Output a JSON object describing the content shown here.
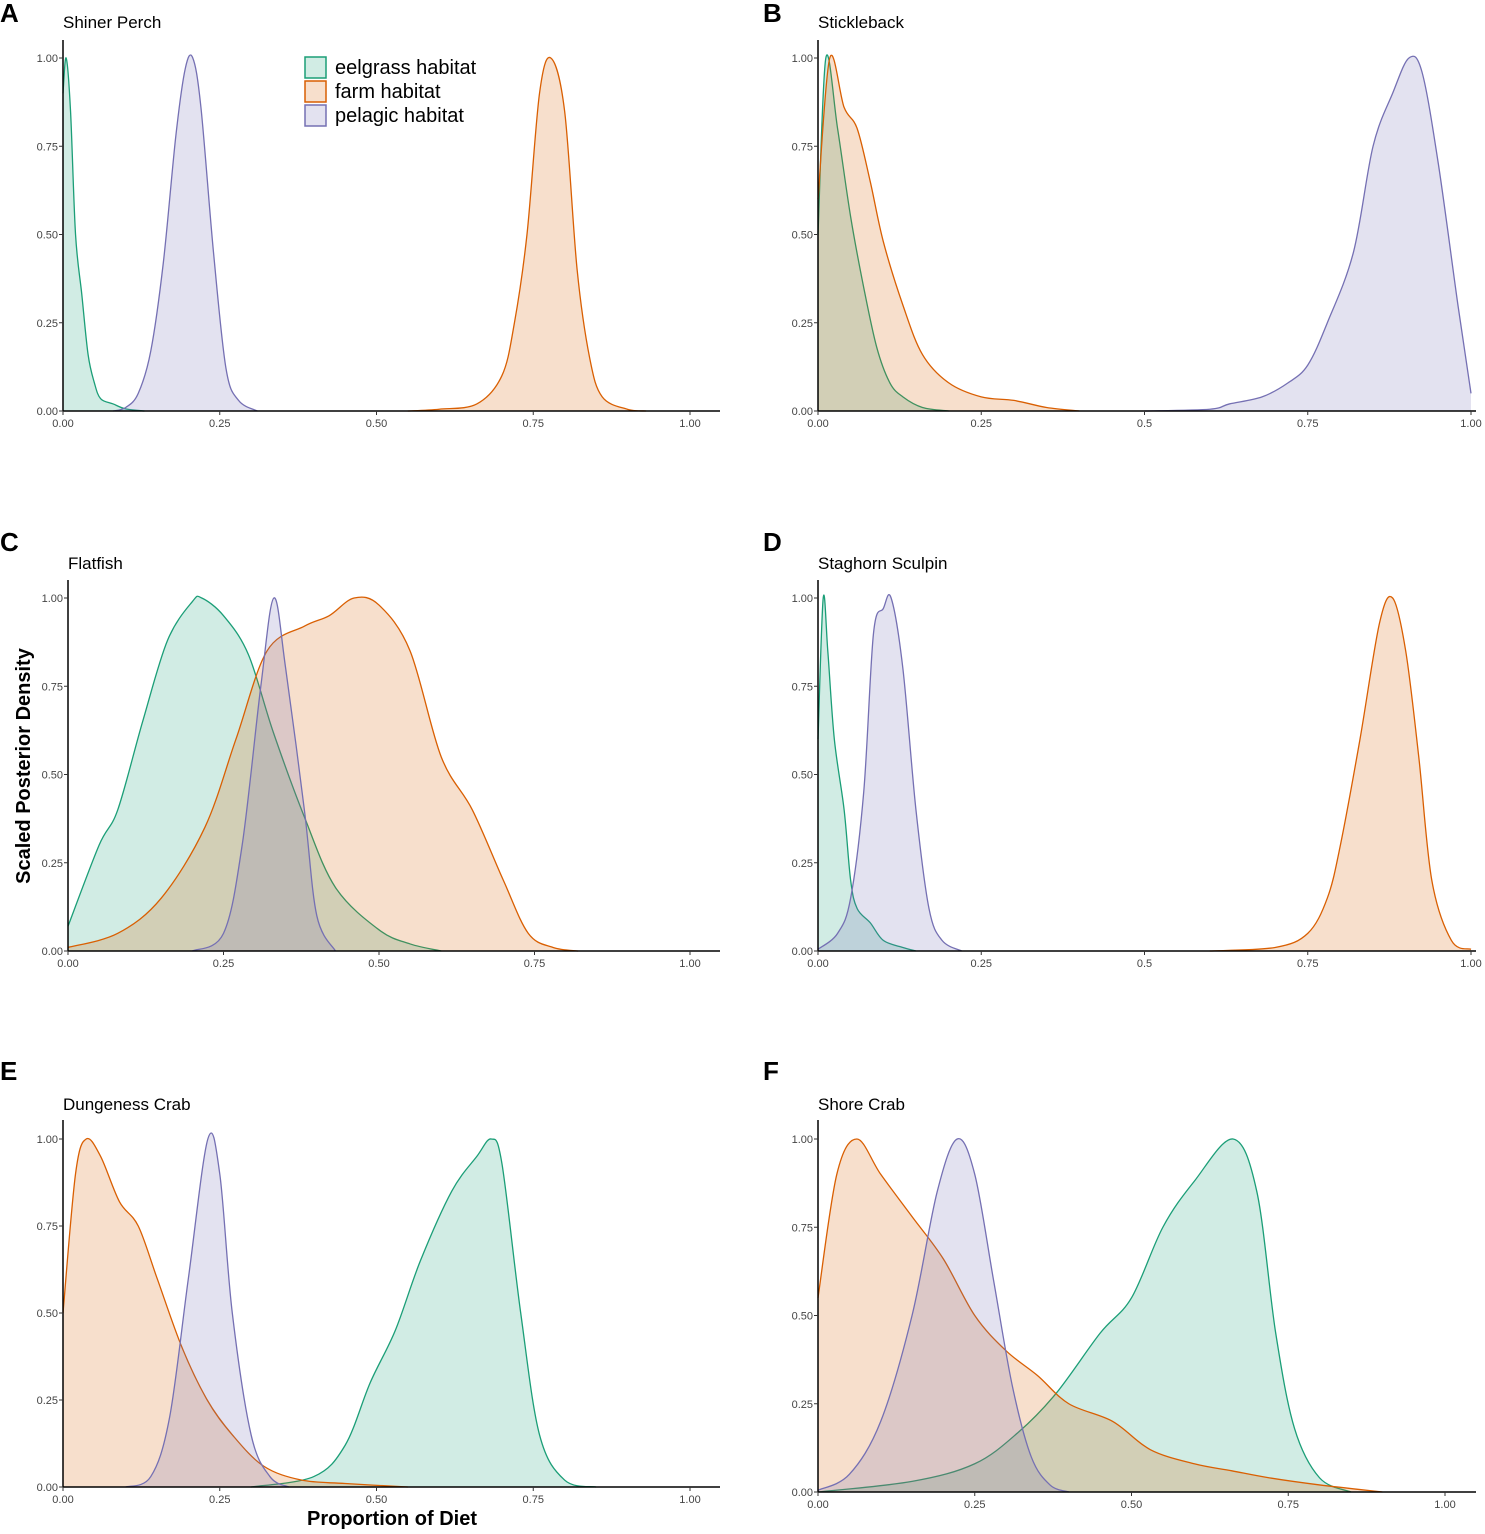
{
  "chart_data": {
    "type": "area",
    "ylabel": "Scaled Posterior Density",
    "xlabel": "Proportion of Diet",
    "legend": {
      "placement": "top-right of panel A",
      "entries": [
        {
          "key": "eelgrass",
          "label": "eelgrass habitat",
          "color": "#1b9e77"
        },
        {
          "key": "farm",
          "label": "farm habitat",
          "color": "#d95f02"
        },
        {
          "key": "pelagic",
          "label": "pelagic habitat",
          "color": "#7570b3"
        }
      ]
    },
    "ylim": [
      0,
      1
    ],
    "yticks": [
      "0.00",
      "0.25",
      "0.50",
      "0.75",
      "1.00"
    ],
    "panels": [
      {
        "letter": "A",
        "title": "Shiner Perch",
        "xticks": [
          "0.00",
          "0.25",
          "0.50",
          "0.75",
          "1.00"
        ],
        "series": {
          "eelgrass": [
            [
              0,
              0.9
            ],
            [
              0.005,
              1.0
            ],
            [
              0.012,
              0.85
            ],
            [
              0.02,
              0.5
            ],
            [
              0.03,
              0.33
            ],
            [
              0.04,
              0.16
            ],
            [
              0.05,
              0.08
            ],
            [
              0.06,
              0.035
            ],
            [
              0.08,
              0.02
            ],
            [
              0.1,
              0.006
            ],
            [
              0.13,
              0
            ]
          ],
          "pelagic": [
            [
              0.08,
              0
            ],
            [
              0.1,
              0.01
            ],
            [
              0.12,
              0.05
            ],
            [
              0.14,
              0.17
            ],
            [
              0.16,
              0.42
            ],
            [
              0.18,
              0.78
            ],
            [
              0.195,
              0.97
            ],
            [
              0.207,
              1.0
            ],
            [
              0.22,
              0.86
            ],
            [
              0.24,
              0.45
            ],
            [
              0.26,
              0.12
            ],
            [
              0.28,
              0.03
            ],
            [
              0.31,
              0
            ]
          ],
          "farm": [
            [
              0.55,
              0
            ],
            [
              0.6,
              0.005
            ],
            [
              0.66,
              0.02
            ],
            [
              0.7,
              0.1
            ],
            [
              0.72,
              0.25
            ],
            [
              0.74,
              0.5
            ],
            [
              0.76,
              0.9
            ],
            [
              0.778,
              1.0
            ],
            [
              0.8,
              0.85
            ],
            [
              0.82,
              0.4
            ],
            [
              0.84,
              0.15
            ],
            [
              0.86,
              0.04
            ],
            [
              0.9,
              0.005
            ],
            [
              0.93,
              0
            ]
          ]
        }
      },
      {
        "letter": "B",
        "title": "Stickleback",
        "xticks": [
          "0.00",
          "0.25",
          "0.5",
          "0.75",
          "1.00"
        ],
        "series": {
          "farm": [
            [
              0,
              0.6
            ],
            [
              0.018,
              1.0
            ],
            [
              0.04,
              0.86
            ],
            [
              0.06,
              0.8
            ],
            [
              0.08,
              0.65
            ],
            [
              0.1,
              0.48
            ],
            [
              0.13,
              0.3
            ],
            [
              0.16,
              0.16
            ],
            [
              0.2,
              0.08
            ],
            [
              0.25,
              0.04
            ],
            [
              0.3,
              0.03
            ],
            [
              0.35,
              0.01
            ],
            [
              0.4,
              0
            ]
          ],
          "eelgrass": [
            [
              0,
              0.5
            ],
            [
              0.012,
              1.0
            ],
            [
              0.03,
              0.8
            ],
            [
              0.05,
              0.55
            ],
            [
              0.07,
              0.35
            ],
            [
              0.09,
              0.18
            ],
            [
              0.11,
              0.08
            ],
            [
              0.13,
              0.04
            ],
            [
              0.16,
              0.01
            ],
            [
              0.2,
              0
            ]
          ],
          "pelagic": [
            [
              0.5,
              0
            ],
            [
              0.6,
              0.005
            ],
            [
              0.63,
              0.02
            ],
            [
              0.68,
              0.04
            ],
            [
              0.72,
              0.08
            ],
            [
              0.75,
              0.13
            ],
            [
              0.78,
              0.25
            ],
            [
              0.82,
              0.45
            ],
            [
              0.85,
              0.75
            ],
            [
              0.88,
              0.9
            ],
            [
              0.905,
              1.0
            ],
            [
              0.925,
              0.96
            ],
            [
              0.95,
              0.7
            ],
            [
              0.98,
              0.3
            ],
            [
              1.0,
              0.05
            ]
          ]
        }
      },
      {
        "letter": "C",
        "title": "Flatfish",
        "xticks": [
          "0.00",
          "0.25",
          "0.50",
          "0.75",
          "1.00"
        ],
        "series": {
          "eelgrass": [
            [
              0,
              0.07
            ],
            [
              0.05,
              0.3
            ],
            [
              0.08,
              0.4
            ],
            [
              0.12,
              0.65
            ],
            [
              0.16,
              0.88
            ],
            [
              0.2,
              0.99
            ],
            [
              0.215,
              1.0
            ],
            [
              0.25,
              0.95
            ],
            [
              0.29,
              0.84
            ],
            [
              0.33,
              0.62
            ],
            [
              0.38,
              0.38
            ],
            [
              0.43,
              0.18
            ],
            [
              0.5,
              0.06
            ],
            [
              0.55,
              0.02
            ],
            [
              0.6,
              0
            ]
          ],
          "farm": [
            [
              0,
              0.01
            ],
            [
              0.08,
              0.05
            ],
            [
              0.15,
              0.15
            ],
            [
              0.22,
              0.35
            ],
            [
              0.27,
              0.6
            ],
            [
              0.32,
              0.85
            ],
            [
              0.38,
              0.92
            ],
            [
              0.42,
              0.95
            ],
            [
              0.46,
              1.0
            ],
            [
              0.5,
              0.98
            ],
            [
              0.55,
              0.85
            ],
            [
              0.6,
              0.55
            ],
            [
              0.65,
              0.4
            ],
            [
              0.7,
              0.2
            ],
            [
              0.74,
              0.05
            ],
            [
              0.78,
              0.01
            ],
            [
              0.82,
              0
            ]
          ],
          "pelagic": [
            [
              0.2,
              0
            ],
            [
              0.25,
              0.05
            ],
            [
              0.28,
              0.3
            ],
            [
              0.31,
              0.75
            ],
            [
              0.331,
              1.0
            ],
            [
              0.35,
              0.8
            ],
            [
              0.38,
              0.4
            ],
            [
              0.4,
              0.1
            ],
            [
              0.43,
              0
            ]
          ]
        }
      },
      {
        "letter": "D",
        "title": "Staghorn Sculpin",
        "xticks": [
          "0.00",
          "0.25",
          "0.5",
          "0.75",
          "1.00"
        ],
        "series": {
          "eelgrass": [
            [
              0,
              0.6
            ],
            [
              0.008,
              1.0
            ],
            [
              0.015,
              0.85
            ],
            [
              0.025,
              0.6
            ],
            [
              0.04,
              0.4
            ],
            [
              0.05,
              0.2
            ],
            [
              0.06,
              0.12
            ],
            [
              0.08,
              0.08
            ],
            [
              0.1,
              0.03
            ],
            [
              0.13,
              0.01
            ],
            [
              0.15,
              0
            ]
          ],
          "pelagic": [
            [
              0,
              0.005
            ],
            [
              0.03,
              0.05
            ],
            [
              0.05,
              0.15
            ],
            [
              0.07,
              0.45
            ],
            [
              0.085,
              0.9
            ],
            [
              0.1,
              0.97
            ],
            [
              0.112,
              1.0
            ],
            [
              0.13,
              0.8
            ],
            [
              0.15,
              0.4
            ],
            [
              0.17,
              0.12
            ],
            [
              0.19,
              0.03
            ],
            [
              0.22,
              0
            ]
          ],
          "farm": [
            [
              0.6,
              0
            ],
            [
              0.7,
              0.01
            ],
            [
              0.75,
              0.05
            ],
            [
              0.78,
              0.15
            ],
            [
              0.8,
              0.3
            ],
            [
              0.83,
              0.6
            ],
            [
              0.86,
              0.93
            ],
            [
              0.88,
              1.0
            ],
            [
              0.9,
              0.85
            ],
            [
              0.92,
              0.55
            ],
            [
              0.94,
              0.2
            ],
            [
              0.97,
              0.03
            ],
            [
              1.0,
              0.005
            ]
          ]
        }
      },
      {
        "letter": "E",
        "title": "Dungeness Crab",
        "xticks": [
          "0.00",
          "0.25",
          "0.50",
          "0.75",
          "1.00"
        ],
        "series": {
          "farm": [
            [
              0,
              0.5
            ],
            [
              0.02,
              0.9
            ],
            [
              0.037,
              1.0
            ],
            [
              0.06,
              0.95
            ],
            [
              0.09,
              0.82
            ],
            [
              0.12,
              0.75
            ],
            [
              0.15,
              0.6
            ],
            [
              0.19,
              0.4
            ],
            [
              0.23,
              0.25
            ],
            [
              0.27,
              0.15
            ],
            [
              0.32,
              0.06
            ],
            [
              0.38,
              0.02
            ],
            [
              0.45,
              0.01
            ],
            [
              0.55,
              0
            ]
          ],
          "pelagic": [
            [
              0.1,
              0
            ],
            [
              0.14,
              0.03
            ],
            [
              0.17,
              0.2
            ],
            [
              0.2,
              0.6
            ],
            [
              0.231,
              1.0
            ],
            [
              0.25,
              0.9
            ],
            [
              0.27,
              0.5
            ],
            [
              0.3,
              0.15
            ],
            [
              0.33,
              0.03
            ],
            [
              0.36,
              0
            ]
          ],
          "eelgrass": [
            [
              0.3,
              0
            ],
            [
              0.4,
              0.03
            ],
            [
              0.45,
              0.12
            ],
            [
              0.49,
              0.3
            ],
            [
              0.53,
              0.45
            ],
            [
              0.57,
              0.65
            ],
            [
              0.62,
              0.85
            ],
            [
              0.66,
              0.95
            ],
            [
              0.683,
              1.0
            ],
            [
              0.7,
              0.93
            ],
            [
              0.73,
              0.5
            ],
            [
              0.76,
              0.15
            ],
            [
              0.8,
              0.02
            ],
            [
              0.85,
              0
            ]
          ]
        }
      },
      {
        "letter": "F",
        "title": "Shore Crab",
        "xticks": [
          "0.00",
          "0.25",
          "0.50",
          "0.75",
          "1.00"
        ],
        "series": {
          "farm": [
            [
              0,
              0.55
            ],
            [
              0.03,
              0.9
            ],
            [
              0.062,
              1.0
            ],
            [
              0.1,
              0.9
            ],
            [
              0.15,
              0.78
            ],
            [
              0.2,
              0.66
            ],
            [
              0.25,
              0.5
            ],
            [
              0.3,
              0.4
            ],
            [
              0.35,
              0.33
            ],
            [
              0.4,
              0.25
            ],
            [
              0.47,
              0.2
            ],
            [
              0.53,
              0.12
            ],
            [
              0.6,
              0.08
            ],
            [
              0.66,
              0.06
            ],
            [
              0.72,
              0.04
            ],
            [
              0.8,
              0.02
            ],
            [
              0.9,
              0
            ]
          ],
          "pelagic": [
            [
              0,
              0.005
            ],
            [
              0.05,
              0.05
            ],
            [
              0.1,
              0.2
            ],
            [
              0.15,
              0.5
            ],
            [
              0.19,
              0.85
            ],
            [
              0.222,
              1.0
            ],
            [
              0.25,
              0.9
            ],
            [
              0.28,
              0.6
            ],
            [
              0.31,
              0.3
            ],
            [
              0.34,
              0.1
            ],
            [
              0.37,
              0.02
            ],
            [
              0.4,
              0
            ]
          ],
          "eelgrass": [
            [
              0,
              0
            ],
            [
              0.15,
              0.03
            ],
            [
              0.25,
              0.08
            ],
            [
              0.32,
              0.17
            ],
            [
              0.38,
              0.28
            ],
            [
              0.45,
              0.45
            ],
            [
              0.5,
              0.55
            ],
            [
              0.55,
              0.75
            ],
            [
              0.6,
              0.88
            ],
            [
              0.662,
              1.0
            ],
            [
              0.7,
              0.85
            ],
            [
              0.73,
              0.45
            ],
            [
              0.76,
              0.18
            ],
            [
              0.8,
              0.04
            ],
            [
              0.85,
              0
            ]
          ]
        }
      }
    ]
  }
}
